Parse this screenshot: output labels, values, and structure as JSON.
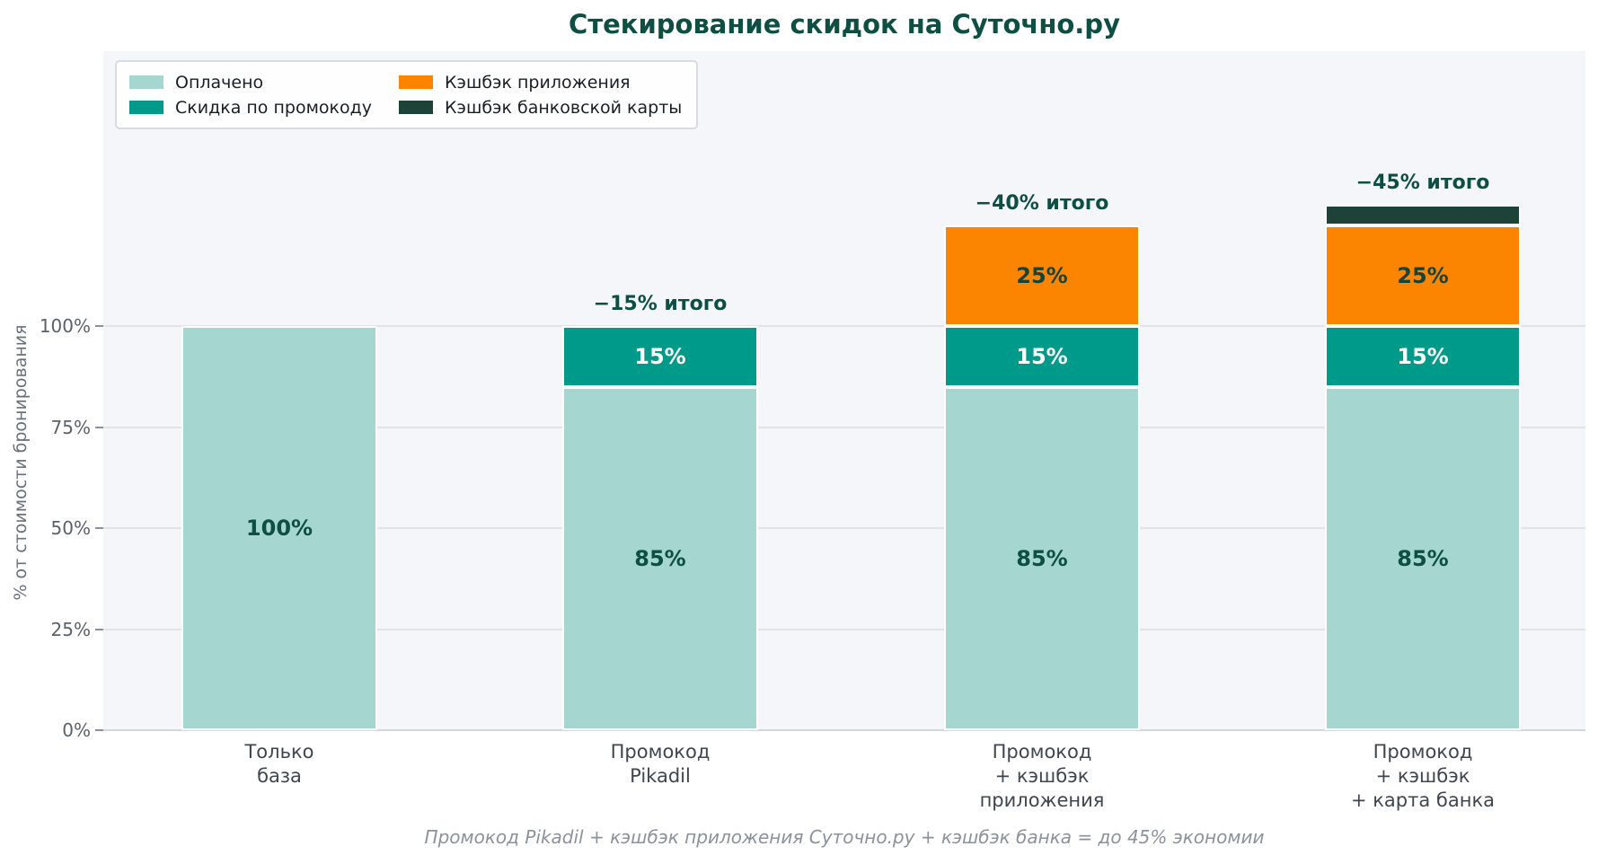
{
  "title": "Стекирование скидок на Суточно.ру",
  "ylabel": "% от стоимости бронирования",
  "footer": "Промокод Pikadil + кэшбэк приложения Суточно.ру + кэшбэк банка = до 45% экономии",
  "colors": {
    "title_text": "#0d4f43",
    "annotation_text": "#0d4f43",
    "plot_bg": "#f4f6f9",
    "gridline": "#e0e3e8",
    "axis_line": "#d2d7dc",
    "ytick_text": "#5b6369",
    "xtick_text": "#3f464d",
    "footer_text": "#8b929a",
    "paid": "#a5d6cf",
    "promo": "#009a8a",
    "app_cashback": "#fb8500",
    "card_cashback": "#1d4238"
  },
  "chart_data": {
    "type": "bar",
    "stacked": true,
    "title": "Стекирование скидок на Суточно.ру",
    "xlabel": "",
    "ylabel": "% от стоимости бронирования",
    "categories": [
      "Только\nбаза",
      "Промокод\nPikadil",
      "Промокод\n+ кэшбэк\nприложения",
      "Промокод\n+ кэшбэк\n+ карта банка"
    ],
    "series": [
      {
        "name": "Оплачено",
        "color": "#a5d6cf",
        "label_color": "#0d4f43",
        "values": [
          100,
          85,
          85,
          85
        ]
      },
      {
        "name": "Скидка по промокоду",
        "color": "#009a8a",
        "label_color": "#ffffff",
        "values": [
          0,
          15,
          15,
          15
        ]
      },
      {
        "name": "Кэшбэк приложения",
        "color": "#fb8500",
        "label_color": "#14443a",
        "values": [
          0,
          0,
          25,
          25
        ]
      },
      {
        "name": "Кэшбэк банковской карты",
        "color": "#1d4238",
        "label_color": "#ffffff",
        "values": [
          0,
          0,
          0,
          5
        ]
      }
    ],
    "totals": [
      100,
      100,
      125,
      130
    ],
    "annotations": [
      "",
      "−15% итого",
      "−40% итого",
      "−45% итого"
    ],
    "yticks": [
      {
        "value": 0,
        "label": "0%"
      },
      {
        "value": 25,
        "label": "25%"
      },
      {
        "value": 50,
        "label": "50%"
      },
      {
        "value": 75,
        "label": "75%"
      },
      {
        "value": 100,
        "label": "100%"
      }
    ],
    "ylim": [
      0,
      168
    ],
    "grid": true,
    "legend_position": "upper-left",
    "segment_label_min_value": 10,
    "segment_label_suffix": "%"
  }
}
